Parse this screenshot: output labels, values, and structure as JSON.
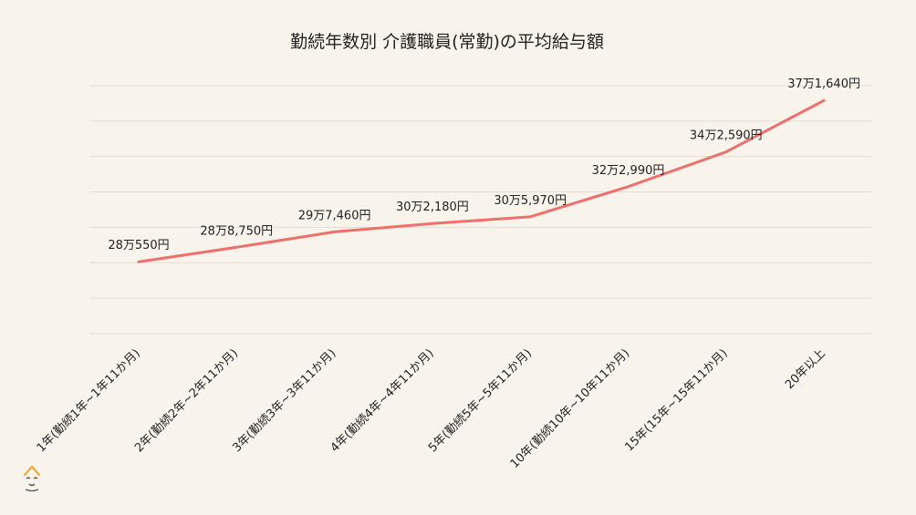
{
  "colors": {
    "background": "#f8f4ec",
    "line": "#ef6f6c",
    "grid": "#e2ddd4",
    "logo": "#f2a93b"
  },
  "chart_data": {
    "type": "line",
    "title": "勤続年数別 介護職員(常勤)の平均給与額",
    "xlabel": "",
    "ylabel": "",
    "categories": [
      "1年(勤続1年~1年11か月)",
      "2年(勤続2年~2年11か月)",
      "3年(勤続3年~3年11か月)",
      "4年(勤続4年~4年11か月)",
      "5年(勤続5年~5年11か月)",
      "10年(勤続10年~10年11か月)",
      "15年(15年~15年11か月)",
      "20年以上"
    ],
    "series": [
      {
        "values": [
          280550,
          288750,
          297460,
          302180,
          305970,
          322990,
          342590,
          371640
        ],
        "data_labels": [
          "28万550円",
          "28万8,750円",
          "29万7,460円",
          "30万2,180円",
          "30万5,970円",
          "32万2,990円",
          "34万2,590円",
          "37万1,640円"
        ]
      }
    ],
    "ylim": [
      240000,
      380000
    ],
    "grid": true,
    "y_grid_step": 20000,
    "y_tick_labels_visible": false
  }
}
